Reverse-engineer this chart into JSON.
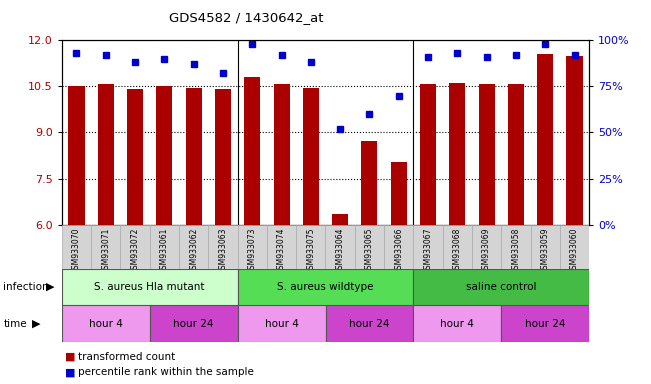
{
  "title": "GDS4582 / 1430642_at",
  "samples": [
    "GSM933070",
    "GSM933071",
    "GSM933072",
    "GSM933061",
    "GSM933062",
    "GSM933063",
    "GSM933073",
    "GSM933074",
    "GSM933075",
    "GSM933064",
    "GSM933065",
    "GSM933066",
    "GSM933067",
    "GSM933068",
    "GSM933069",
    "GSM933058",
    "GSM933059",
    "GSM933060"
  ],
  "bar_values": [
    10.5,
    10.58,
    10.43,
    10.5,
    10.46,
    10.43,
    10.8,
    10.57,
    10.45,
    6.35,
    8.73,
    8.05,
    10.57,
    10.6,
    10.58,
    10.57,
    11.57,
    11.48
  ],
  "dot_values": [
    93,
    92,
    88,
    90,
    87,
    82,
    98,
    92,
    88,
    52,
    60,
    70,
    91,
    93,
    91,
    92,
    98,
    92
  ],
  "ylim": [
    6,
    12
  ],
  "yticks_left": [
    6,
    7.5,
    9,
    10.5,
    12
  ],
  "yticks_right": [
    0,
    25,
    50,
    75,
    100
  ],
  "infection_groups": [
    {
      "label": "S. aureus Hla mutant",
      "start": 0,
      "end": 6,
      "color": "#ccffcc"
    },
    {
      "label": "S. aureus wildtype",
      "start": 6,
      "end": 12,
      "color": "#55dd55"
    },
    {
      "label": "saline control",
      "start": 12,
      "end": 18,
      "color": "#44bb44"
    }
  ],
  "time_groups": [
    {
      "label": "hour 4",
      "start": 0,
      "end": 3,
      "color": "#ee99ee"
    },
    {
      "label": "hour 24",
      "start": 3,
      "end": 6,
      "color": "#cc44cc"
    },
    {
      "label": "hour 4",
      "start": 6,
      "end": 9,
      "color": "#ee99ee"
    },
    {
      "label": "hour 24",
      "start": 9,
      "end": 12,
      "color": "#cc44cc"
    },
    {
      "label": "hour 4",
      "start": 12,
      "end": 15,
      "color": "#ee99ee"
    },
    {
      "label": "hour 24",
      "start": 15,
      "end": 18,
      "color": "#cc44cc"
    }
  ],
  "bar_color": "#aa0000",
  "dot_color": "#0000cc",
  "bg_color": "#ffffff",
  "sample_bg": "#d4d4d4",
  "bar_width": 0.55,
  "n_samples": 18
}
